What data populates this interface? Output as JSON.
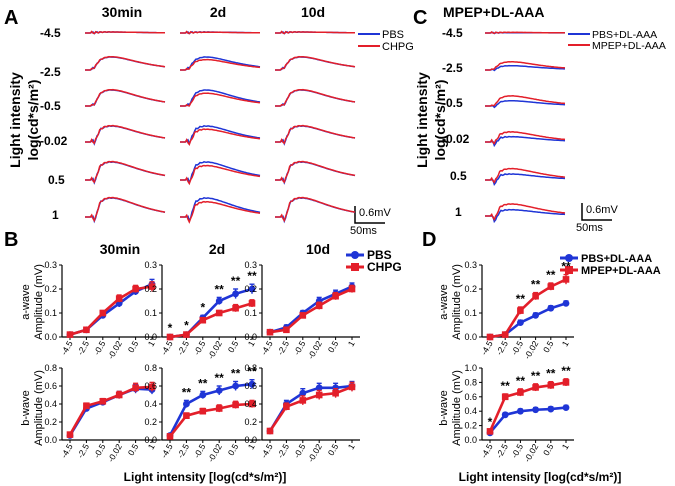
{
  "colors": {
    "pbs": "#1f35d6",
    "chpg": "#e31f2a",
    "axis": "#000000"
  },
  "panels": {
    "A": "A",
    "B": "B",
    "C": "C",
    "D": "D"
  },
  "panel_A": {
    "columns": [
      "30min",
      "2d",
      "10d"
    ],
    "intensities": [
      "-4.5",
      "-2.5",
      "-0.5",
      "-0.02",
      "0.5",
      "1"
    ],
    "ylabel_1": "Light intensity",
    "ylabel_2": "log(cd*s/m²)",
    "legend": [
      "PBS",
      "CHPG"
    ],
    "scale_amplitude": "0.6mV",
    "scale_time": "50ms"
  },
  "panel_C": {
    "title": "MPEP+DL-AAA",
    "intensities": [
      "-4.5",
      "-2.5",
      "-0.5",
      "-0.02",
      "0.5",
      "1"
    ],
    "ylabel_1": "Light intensity",
    "ylabel_2": "log(cd*s/m²)",
    "legend": [
      "PBS+DL-AAA",
      "MPEP+DL-AAA"
    ],
    "scale_amplitude": "0.6mV",
    "scale_time": "50ms"
  },
  "panel_B": {
    "xlabel": "Light intensity [log(cd*s/m²)]",
    "ylabel_a_1": "a-wave",
    "ylabel_a_2": "Amplitude (mV)",
    "ylabel_b_1": "b-wave",
    "ylabel_b_2": "Amplitude (mV)",
    "legend": [
      "PBS",
      "CHPG"
    ]
  },
  "panel_D": {
    "xlabel": "Light intensity [log(cd*s/m²)]",
    "ylabel_a_1": "a-wave",
    "ylabel_a_2": "Amplitude (mV)",
    "ylabel_b_1": "b-wave",
    "ylabel_b_2": "Amplitude (mV)",
    "legend": [
      "PBS+DL-AAA",
      "MPEP+DL-AAA"
    ]
  },
  "chart_data": [
    {
      "type": "line",
      "id": "B-a-30min",
      "title": "30min",
      "ylabel": "a-wave Amplitude (mV)",
      "xlabel": "Light intensity [log(cd*s/m²)]",
      "categories": [
        "-4.5",
        "-2.5",
        "-0.5",
        "-0.02",
        "0.5",
        "1"
      ],
      "ylim": [
        0,
        0.3
      ],
      "yticks": [
        0,
        0.1,
        0.2,
        0.3
      ],
      "yticklabels": [
        "0.0",
        "0.1",
        "0.2",
        "0.3"
      ],
      "series": [
        {
          "name": "PBS",
          "values": [
            0.01,
            0.03,
            0.09,
            0.14,
            0.19,
            0.22
          ],
          "err": [
            0.01,
            0.01,
            0.01,
            0.015,
            0.015,
            0.02
          ]
        },
        {
          "name": "CHPG",
          "values": [
            0.01,
            0.03,
            0.1,
            0.16,
            0.2,
            0.21
          ],
          "err": [
            0.01,
            0.01,
            0.01,
            0.015,
            0.015,
            0.02
          ]
        }
      ],
      "annotations": []
    },
    {
      "type": "line",
      "id": "B-a-2d",
      "title": "2d",
      "categories": [
        "-4.5",
        "-2.5",
        "-0.5",
        "-0.02",
        "0.5",
        "1"
      ],
      "ylim": [
        0,
        0.3
      ],
      "yticks": [
        0,
        0.1,
        0.2,
        0.3
      ],
      "yticklabels": [
        "0.0",
        "0.1",
        "0.2",
        "0.3"
      ],
      "series": [
        {
          "name": "PBS",
          "values": [
            0.0,
            0.01,
            0.08,
            0.15,
            0.18,
            0.2
          ],
          "err": [
            0.005,
            0.005,
            0.01,
            0.015,
            0.02,
            0.02
          ]
        },
        {
          "name": "CHPG",
          "values": [
            0.0,
            0.01,
            0.07,
            0.1,
            0.12,
            0.14
          ],
          "err": [
            0.005,
            0.005,
            0.01,
            0.01,
            0.015,
            0.015
          ]
        }
      ],
      "annotations": [
        {
          "category": "-4.5",
          "text": "*"
        },
        {
          "category": "-2.5",
          "text": "*"
        },
        {
          "category": "-0.5",
          "text": "*"
        },
        {
          "category": "-0.02",
          "text": "**"
        },
        {
          "category": "0.5",
          "text": "**"
        },
        {
          "category": "1",
          "text": "**"
        }
      ]
    },
    {
      "type": "line",
      "id": "B-a-10d",
      "title": "10d",
      "categories": [
        "-4.5",
        "-2.5",
        "-0.5",
        "-0.02",
        "0.5",
        "1"
      ],
      "ylim": [
        0,
        0.3
      ],
      "yticks": [
        0,
        0.1,
        0.2,
        0.3
      ],
      "yticklabels": [
        "0.0",
        "0.1",
        "0.2",
        "0.3"
      ],
      "series": [
        {
          "name": "PBS",
          "values": [
            0.02,
            0.04,
            0.1,
            0.15,
            0.18,
            0.21
          ],
          "err": [
            0.005,
            0.01,
            0.01,
            0.015,
            0.015,
            0.015
          ]
        },
        {
          "name": "CHPG",
          "values": [
            0.02,
            0.03,
            0.09,
            0.13,
            0.17,
            0.2
          ],
          "err": [
            0.005,
            0.01,
            0.01,
            0.015,
            0.015,
            0.015
          ]
        }
      ],
      "annotations": []
    },
    {
      "type": "line",
      "id": "B-b-30min",
      "ylabel": "b-wave Amplitude (mV)",
      "categories": [
        "-4.5",
        "-2.5",
        "-0.5",
        "-0.02",
        "0.5",
        "1"
      ],
      "ylim": [
        0,
        0.8
      ],
      "yticks": [
        0,
        0.2,
        0.4,
        0.6,
        0.8
      ],
      "yticklabels": [
        "0.0",
        "0.2",
        "0.4",
        "0.6",
        "0.8"
      ],
      "series": [
        {
          "name": "PBS",
          "values": [
            0.05,
            0.35,
            0.42,
            0.5,
            0.57,
            0.56
          ],
          "err": [
            0.02,
            0.03,
            0.03,
            0.04,
            0.05,
            0.05
          ]
        },
        {
          "name": "CHPG",
          "values": [
            0.06,
            0.38,
            0.43,
            0.5,
            0.58,
            0.59
          ],
          "err": [
            0.02,
            0.03,
            0.03,
            0.04,
            0.05,
            0.05
          ]
        }
      ],
      "annotations": []
    },
    {
      "type": "line",
      "id": "B-b-2d",
      "categories": [
        "-4.5",
        "-2.5",
        "-0.5",
        "-0.02",
        "0.5",
        "1"
      ],
      "ylim": [
        0,
        0.8
      ],
      "yticks": [
        0,
        0.2,
        0.4,
        0.6,
        0.8
      ],
      "yticklabels": [
        "0.0",
        "0.2",
        "0.4",
        "0.6",
        "0.8"
      ],
      "series": [
        {
          "name": "PBS",
          "values": [
            0.05,
            0.4,
            0.5,
            0.55,
            0.6,
            0.62
          ],
          "err": [
            0.02,
            0.04,
            0.04,
            0.05,
            0.05,
            0.05
          ]
        },
        {
          "name": "CHPG",
          "values": [
            0.04,
            0.27,
            0.32,
            0.35,
            0.39,
            0.4
          ],
          "err": [
            0.02,
            0.03,
            0.03,
            0.04,
            0.04,
            0.04
          ]
        }
      ],
      "annotations": [
        {
          "category": "-2.5",
          "text": "**"
        },
        {
          "category": "-0.5",
          "text": "**"
        },
        {
          "category": "-0.02",
          "text": "**"
        },
        {
          "category": "0.5",
          "text": "**"
        },
        {
          "category": "1",
          "text": "**"
        }
      ]
    },
    {
      "type": "line",
      "id": "B-b-10d",
      "categories": [
        "-4.5",
        "-2.5",
        "-0.5",
        "-0.02",
        "0.5",
        "1"
      ],
      "ylim": [
        0,
        0.8
      ],
      "yticks": [
        0,
        0.2,
        0.4,
        0.6,
        0.8
      ],
      "yticklabels": [
        "0.0",
        "0.2",
        "0.4",
        "0.6",
        "0.8"
      ],
      "series": [
        {
          "name": "PBS",
          "values": [
            0.1,
            0.4,
            0.52,
            0.58,
            0.58,
            0.6
          ],
          "err": [
            0.02,
            0.04,
            0.05,
            0.05,
            0.05,
            0.05
          ]
        },
        {
          "name": "CHPG",
          "values": [
            0.1,
            0.37,
            0.44,
            0.5,
            0.52,
            0.59
          ],
          "err": [
            0.02,
            0.04,
            0.05,
            0.05,
            0.05,
            0.05
          ]
        }
      ],
      "annotations": []
    },
    {
      "type": "line",
      "id": "D-a",
      "ylabel": "a-wave Amplitude (mV)",
      "categories": [
        "-4.5",
        "-2.5",
        "-0.5",
        "-0.02",
        "0.5",
        "1"
      ],
      "ylim": [
        0,
        0.3
      ],
      "yticks": [
        0,
        0.1,
        0.2,
        0.3
      ],
      "yticklabels": [
        "0.0",
        "0.1",
        "0.2",
        "0.3"
      ],
      "series": [
        {
          "name": "PBS+DL-AAA",
          "values": [
            0.0,
            0.01,
            0.06,
            0.09,
            0.12,
            0.14
          ],
          "err": [
            0.003,
            0.005,
            0.01,
            0.01,
            0.01,
            0.01
          ]
        },
        {
          "name": "MPEP+DL-AAA",
          "values": [
            0.0,
            0.01,
            0.11,
            0.17,
            0.21,
            0.24
          ],
          "err": [
            0.003,
            0.005,
            0.015,
            0.015,
            0.015,
            0.02
          ]
        }
      ],
      "annotations": [
        {
          "category": "-0.5",
          "text": "**"
        },
        {
          "category": "-0.02",
          "text": "**"
        },
        {
          "category": "0.5",
          "text": "**"
        },
        {
          "category": "1",
          "text": "**"
        }
      ]
    },
    {
      "type": "line",
      "id": "D-b",
      "ylabel": "b-wave Amplitude (mV)",
      "xlabel": "Light intensity [log(cd*s/m²)]",
      "categories": [
        "-4.5",
        "-2.5",
        "-0.5",
        "-0.02",
        "0.5",
        "1"
      ],
      "ylim": [
        0,
        1.0
      ],
      "yticks": [
        0,
        0.2,
        0.4,
        0.6,
        0.8,
        1.0
      ],
      "yticklabels": [
        "0.0",
        "0.2",
        "0.4",
        "0.6",
        "0.8",
        "1.0"
      ],
      "series": [
        {
          "name": "PBS+DL-AAA",
          "values": [
            0.1,
            0.35,
            0.4,
            0.42,
            0.43,
            0.45
          ],
          "err": [
            0.02,
            0.03,
            0.03,
            0.03,
            0.03,
            0.03
          ]
        },
        {
          "name": "MPEP+DL-AAA",
          "values": [
            0.12,
            0.6,
            0.66,
            0.73,
            0.76,
            0.8
          ],
          "err": [
            0.02,
            0.04,
            0.05,
            0.05,
            0.05,
            0.05
          ]
        }
      ],
      "annotations": [
        {
          "category": "-4.5",
          "text": "*"
        },
        {
          "category": "-2.5",
          "text": "**"
        },
        {
          "category": "-0.5",
          "text": "**"
        },
        {
          "category": "-0.02",
          "text": "**"
        },
        {
          "category": "0.5",
          "text": "**"
        },
        {
          "category": "1",
          "text": "**"
        }
      ]
    }
  ]
}
